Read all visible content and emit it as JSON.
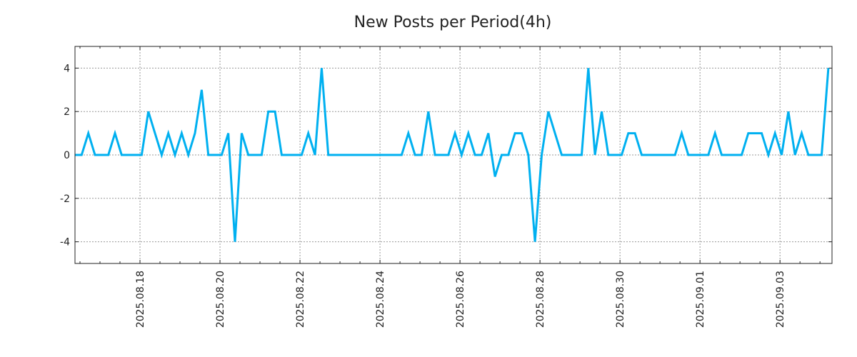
{
  "chart_data": {
    "type": "line",
    "title": "New Posts per Period(4h)",
    "xlabel": "",
    "ylabel": "",
    "x_unit": "days since 2025-08-16 00:00",
    "x_start": 0.375,
    "x_step": 0.1666667,
    "xlim": [
      0.375,
      19.3
    ],
    "ylim": [
      -5,
      5
    ],
    "grid": true,
    "line_color": "#00b0f0",
    "x_ticks": [
      {
        "value": 2,
        "label": "2025.08.18"
      },
      {
        "value": 4,
        "label": "2025.08.20"
      },
      {
        "value": 6,
        "label": "2025.08.22"
      },
      {
        "value": 8,
        "label": "2025.08.24"
      },
      {
        "value": 10,
        "label": "2025.08.26"
      },
      {
        "value": 12,
        "label": "2025.08.28"
      },
      {
        "value": 14,
        "label": "2025.08.30"
      },
      {
        "value": 16,
        "label": "2025.09.01"
      },
      {
        "value": 18,
        "label": "2025.09.03"
      }
    ],
    "y_ticks": [
      {
        "value": 4,
        "label": "4"
      },
      {
        "value": 2,
        "label": "2"
      },
      {
        "value": 0,
        "label": "0"
      },
      {
        "value": -2,
        "label": "-2"
      },
      {
        "value": -4,
        "label": "-4"
      }
    ],
    "series": [
      {
        "name": "New Posts",
        "values": [
          0,
          0,
          1,
          0,
          0,
          0,
          1,
          0,
          0,
          0,
          0,
          2,
          1,
          0,
          1,
          0,
          1,
          0,
          1,
          3,
          0,
          0,
          0,
          1,
          -4,
          1,
          0,
          0,
          0,
          2,
          2,
          0,
          0,
          0,
          0,
          1,
          0,
          4,
          0,
          0,
          0,
          0,
          0,
          0,
          0,
          0,
          0,
          0,
          0,
          0,
          1,
          0,
          0,
          2,
          0,
          0,
          0,
          1,
          0,
          1,
          0,
          0,
          1,
          -1,
          0,
          0,
          1,
          1,
          0,
          -4,
          0,
          2,
          1,
          0,
          0,
          0,
          0,
          4,
          0,
          2,
          0,
          0,
          0,
          1,
          1,
          0,
          0,
          0,
          0,
          0,
          0,
          1,
          0,
          0,
          0,
          0,
          1,
          0,
          0,
          0,
          0,
          1,
          1,
          1,
          0,
          1,
          0,
          2,
          0,
          1,
          0,
          0,
          0,
          4
        ]
      }
    ]
  }
}
